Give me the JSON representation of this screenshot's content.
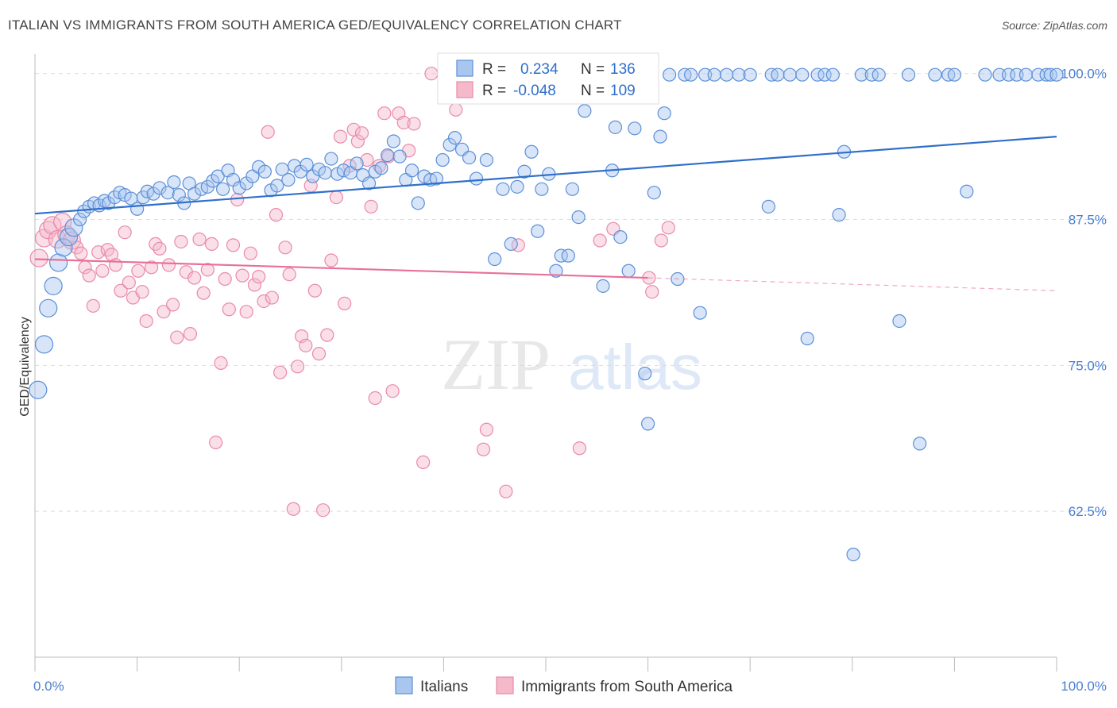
{
  "title": "ITALIAN VS IMMIGRANTS FROM SOUTH AMERICA GED/EQUIVALENCY CORRELATION CHART",
  "source": "Source: ZipAtlas.com",
  "watermark": {
    "zip": "ZIP",
    "atlas": "atlas"
  },
  "colors": {
    "blue": "#5b8fd8",
    "blue_fill": "#a9c6ef",
    "blue_line": "#2f6fcb",
    "pink": "#e98aa8",
    "pink_fill": "#f5b9cc",
    "pink_line": "#e8709a",
    "tick_text": "#4a7fd0",
    "grid": "#dddddd"
  },
  "legend": {
    "rows": [
      {
        "r_label": "R =",
        "r_value": "0.234",
        "n_label": "N =",
        "n_value": "136",
        "series": "Italians"
      },
      {
        "r_label": "R =",
        "r_value": "-0.048",
        "n_label": "N =",
        "n_value": "109",
        "series": "Immigrants from South America"
      }
    ]
  },
  "chart_data": {
    "type": "scatter",
    "title": "ITALIAN VS IMMIGRANTS FROM SOUTH AMERICA GED/EQUIVALENCY CORRELATION CHART",
    "xlabel": "",
    "ylabel": "GED/Equivalency",
    "xlim": [
      0,
      100
    ],
    "ylim": [
      50,
      101
    ],
    "x_tick_labels": [
      "0.0%",
      "100.0%"
    ],
    "y_ticks": [
      62.5,
      75.0,
      87.5,
      100.0
    ],
    "y_tick_labels": [
      "62.5%",
      "75.0%",
      "87.5%",
      "100.0%"
    ],
    "grid": true,
    "legend_position": "bottom",
    "series": [
      {
        "name": "Italians",
        "r": 0.234,
        "n": 136,
        "trend": {
          "x": [
            0,
            100
          ],
          "y": [
            88.0,
            94.6
          ]
        },
        "points": [
          [
            0.3,
            72.9
          ],
          [
            0.9,
            76.8
          ],
          [
            1.3,
            79.9
          ],
          [
            1.8,
            81.8
          ],
          [
            2.3,
            83.8
          ],
          [
            2.8,
            85.1
          ],
          [
            3.3,
            86.0
          ],
          [
            3.8,
            86.8
          ],
          [
            4.4,
            87.5
          ],
          [
            4.8,
            88.2
          ],
          [
            5.3,
            88.6
          ],
          [
            5.8,
            88.9
          ],
          [
            6.3,
            88.7
          ],
          [
            6.8,
            89.1
          ],
          [
            7.2,
            88.9
          ],
          [
            7.8,
            89.4
          ],
          [
            8.3,
            89.8
          ],
          [
            8.8,
            89.6
          ],
          [
            9.4,
            89.3
          ],
          [
            10.0,
            88.4
          ],
          [
            10.6,
            89.4
          ],
          [
            11.0,
            89.9
          ],
          [
            11.6,
            89.7
          ],
          [
            12.2,
            90.2
          ],
          [
            13.0,
            89.8
          ],
          [
            13.6,
            90.7
          ],
          [
            14.1,
            89.6
          ],
          [
            14.6,
            88.9
          ],
          [
            15.1,
            90.6
          ],
          [
            15.6,
            89.7
          ],
          [
            16.3,
            90.1
          ],
          [
            16.9,
            90.3
          ],
          [
            17.4,
            90.8
          ],
          [
            17.9,
            91.2
          ],
          [
            18.4,
            90.1
          ],
          [
            18.9,
            91.7
          ],
          [
            19.4,
            90.9
          ],
          [
            20.0,
            90.2
          ],
          [
            20.7,
            90.6
          ],
          [
            21.3,
            91.2
          ],
          [
            21.9,
            92.0
          ],
          [
            22.5,
            91.6
          ],
          [
            23.1,
            90.0
          ],
          [
            23.7,
            90.4
          ],
          [
            24.2,
            91.8
          ],
          [
            24.8,
            90.9
          ],
          [
            25.4,
            92.1
          ],
          [
            26.0,
            91.6
          ],
          [
            26.6,
            92.2
          ],
          [
            27.2,
            91.2
          ],
          [
            27.8,
            91.8
          ],
          [
            28.4,
            91.5
          ],
          [
            29.0,
            92.7
          ],
          [
            29.6,
            91.4
          ],
          [
            30.2,
            91.7
          ],
          [
            30.9,
            91.5
          ],
          [
            31.5,
            92.3
          ],
          [
            32.1,
            91.3
          ],
          [
            32.7,
            90.6
          ],
          [
            33.3,
            91.6
          ],
          [
            33.9,
            91.9
          ],
          [
            34.5,
            93.0
          ],
          [
            35.1,
            94.2
          ],
          [
            35.7,
            92.9
          ],
          [
            36.3,
            90.9
          ],
          [
            36.9,
            91.7
          ],
          [
            37.5,
            88.9
          ],
          [
            38.1,
            91.2
          ],
          [
            38.7,
            90.9
          ],
          [
            39.3,
            91.0
          ],
          [
            39.9,
            92.6
          ],
          [
            40.6,
            93.9
          ],
          [
            41.1,
            94.5
          ],
          [
            41.8,
            93.5
          ],
          [
            42.5,
            92.8
          ],
          [
            43.2,
            91.0
          ],
          [
            44.2,
            92.6
          ],
          [
            45.0,
            84.1
          ],
          [
            45.8,
            90.1
          ],
          [
            46.6,
            85.4
          ],
          [
            47.2,
            90.3
          ],
          [
            47.9,
            91.6
          ],
          [
            48.6,
            93.3
          ],
          [
            49.2,
            86.5
          ],
          [
            49.6,
            90.1
          ],
          [
            50.3,
            91.4
          ],
          [
            51.0,
            83.1
          ],
          [
            51.5,
            84.4
          ],
          [
            52.2,
            84.4
          ],
          [
            52.6,
            90.1
          ],
          [
            53.2,
            87.7
          ],
          [
            53.8,
            96.8
          ],
          [
            54.7,
            99.9
          ],
          [
            55.6,
            81.8
          ],
          [
            56.5,
            91.7
          ],
          [
            56.8,
            95.4
          ],
          [
            57.3,
            86.0
          ],
          [
            58.1,
            83.1
          ],
          [
            58.7,
            95.3
          ],
          [
            59.4,
            99.9
          ],
          [
            59.7,
            74.3
          ],
          [
            60.0,
            70.0
          ],
          [
            60.6,
            89.8
          ],
          [
            61.2,
            94.6
          ],
          [
            61.6,
            96.6
          ],
          [
            62.1,
            99.9
          ],
          [
            62.9,
            82.4
          ],
          [
            63.6,
            99.9
          ],
          [
            64.2,
            99.9
          ],
          [
            65.1,
            79.5
          ],
          [
            65.6,
            99.9
          ],
          [
            66.5,
            99.9
          ],
          [
            67.7,
            99.9
          ],
          [
            68.9,
            99.9
          ],
          [
            70.0,
            99.9
          ],
          [
            71.8,
            88.6
          ],
          [
            72.1,
            99.9
          ],
          [
            72.7,
            99.9
          ],
          [
            73.9,
            99.9
          ],
          [
            75.1,
            99.9
          ],
          [
            75.6,
            77.3
          ],
          [
            76.6,
            99.9
          ],
          [
            77.3,
            99.9
          ],
          [
            78.1,
            99.9
          ],
          [
            78.7,
            87.9
          ],
          [
            79.2,
            93.3
          ],
          [
            80.1,
            58.8
          ],
          [
            80.9,
            99.9
          ],
          [
            81.9,
            99.9
          ],
          [
            82.6,
            99.9
          ],
          [
            84.6,
            78.8
          ],
          [
            85.5,
            99.9
          ],
          [
            86.6,
            68.3
          ],
          [
            88.1,
            99.9
          ],
          [
            89.4,
            99.9
          ],
          [
            90.0,
            99.9
          ],
          [
            91.2,
            89.9
          ],
          [
            93.0,
            99.9
          ],
          [
            94.4,
            99.9
          ],
          [
            95.3,
            99.9
          ],
          [
            96.1,
            99.9
          ],
          [
            97.0,
            99.9
          ],
          [
            98.2,
            99.9
          ],
          [
            99.0,
            99.9
          ],
          [
            99.4,
            99.9
          ],
          [
            100.0,
            99.9
          ]
        ]
      },
      {
        "name": "Immigrants from South America",
        "r": -0.048,
        "n": 109,
        "trend": {
          "x": [
            0,
            60
          ],
          "y": [
            84.1,
            82.5
          ]
        },
        "trend_dashed": {
          "x": [
            60,
            100
          ],
          "y": [
            82.5,
            81.4
          ]
        },
        "points": [
          [
            0.4,
            84.2
          ],
          [
            0.9,
            85.9
          ],
          [
            1.3,
            86.6
          ],
          [
            1.7,
            87.0
          ],
          [
            2.2,
            85.8
          ],
          [
            2.7,
            87.3
          ],
          [
            3.1,
            86.2
          ],
          [
            3.6,
            85.7
          ],
          [
            4.1,
            85.1
          ],
          [
            4.5,
            84.6
          ],
          [
            4.9,
            83.4
          ],
          [
            5.3,
            82.7
          ],
          [
            5.7,
            80.1
          ],
          [
            6.2,
            84.7
          ],
          [
            6.6,
            83.1
          ],
          [
            7.1,
            84.9
          ],
          [
            7.5,
            84.5
          ],
          [
            7.9,
            83.6
          ],
          [
            8.4,
            81.4
          ],
          [
            8.8,
            86.4
          ],
          [
            9.2,
            82.1
          ],
          [
            9.6,
            80.8
          ],
          [
            10.1,
            83.1
          ],
          [
            10.5,
            81.3
          ],
          [
            10.9,
            78.8
          ],
          [
            11.4,
            83.4
          ],
          [
            11.8,
            85.4
          ],
          [
            12.2,
            85.0
          ],
          [
            12.6,
            79.6
          ],
          [
            13.1,
            83.6
          ],
          [
            13.5,
            80.2
          ],
          [
            13.9,
            77.4
          ],
          [
            14.3,
            85.6
          ],
          [
            14.8,
            83.0
          ],
          [
            15.2,
            77.7
          ],
          [
            15.6,
            82.5
          ],
          [
            16.1,
            85.8
          ],
          [
            16.5,
            81.2
          ],
          [
            16.9,
            83.2
          ],
          [
            17.3,
            85.4
          ],
          [
            17.7,
            68.4
          ],
          [
            18.2,
            75.2
          ],
          [
            18.6,
            82.4
          ],
          [
            19.0,
            79.8
          ],
          [
            19.4,
            85.3
          ],
          [
            19.8,
            89.2
          ],
          [
            20.3,
            82.7
          ],
          [
            20.7,
            79.6
          ],
          [
            21.1,
            84.6
          ],
          [
            21.5,
            81.9
          ],
          [
            21.9,
            82.6
          ],
          [
            22.4,
            80.5
          ],
          [
            22.8,
            95.0
          ],
          [
            23.2,
            80.8
          ],
          [
            23.6,
            87.9
          ],
          [
            24.0,
            74.4
          ],
          [
            24.5,
            85.1
          ],
          [
            24.9,
            82.8
          ],
          [
            25.3,
            62.7
          ],
          [
            25.7,
            74.9
          ],
          [
            26.1,
            77.5
          ],
          [
            26.5,
            76.7
          ],
          [
            27.0,
            90.4
          ],
          [
            27.4,
            81.4
          ],
          [
            27.8,
            76.0
          ],
          [
            28.2,
            62.6
          ],
          [
            28.6,
            77.6
          ],
          [
            29.0,
            84.0
          ],
          [
            29.5,
            89.4
          ],
          [
            29.9,
            94.6
          ],
          [
            30.3,
            80.3
          ],
          [
            30.8,
            92.1
          ],
          [
            31.2,
            95.2
          ],
          [
            31.6,
            94.2
          ],
          [
            32.0,
            94.9
          ],
          [
            32.5,
            92.6
          ],
          [
            32.9,
            88.6
          ],
          [
            33.3,
            72.2
          ],
          [
            33.7,
            92.1
          ],
          [
            34.2,
            96.6
          ],
          [
            34.6,
            92.9
          ],
          [
            35.0,
            72.8
          ],
          [
            35.6,
            96.6
          ],
          [
            36.1,
            95.8
          ],
          [
            36.6,
            93.4
          ],
          [
            37.1,
            95.7
          ],
          [
            38.0,
            66.7
          ],
          [
            38.8,
            100.0
          ],
          [
            41.2,
            96.9
          ],
          [
            43.9,
            67.8
          ],
          [
            44.2,
            69.5
          ],
          [
            46.1,
            64.2
          ],
          [
            47.3,
            85.3
          ],
          [
            53.3,
            67.9
          ],
          [
            55.3,
            85.7
          ],
          [
            56.6,
            86.7
          ],
          [
            60.1,
            82.5
          ],
          [
            60.4,
            81.3
          ],
          [
            61.3,
            85.7
          ],
          [
            62.0,
            86.8
          ]
        ]
      }
    ]
  }
}
